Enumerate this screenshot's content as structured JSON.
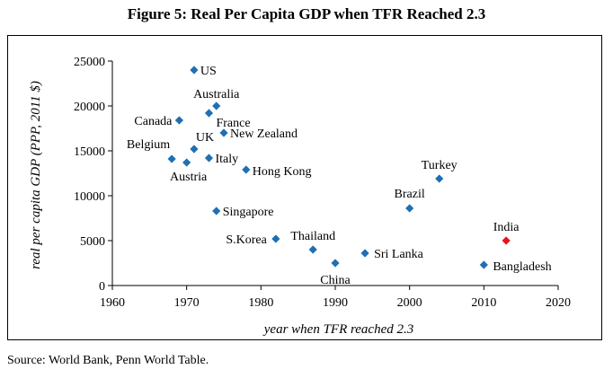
{
  "figure": {
    "title": "Figure 5: Real Per Capita GDP when TFR Reached 2.3",
    "source": "Source: World Bank, Penn World Table."
  },
  "chart_data": {
    "type": "scatter",
    "title": "Figure 5: Real Per Capita GDP when TFR Reached 2.3",
    "xlabel": "year when TFR reached 2.3",
    "ylabel": "real  per capita GDP (PPP, 2011 $)",
    "xlim": [
      1960,
      2020
    ],
    "ylim": [
      0,
      25000
    ],
    "xticks": [
      1960,
      1970,
      1980,
      1990,
      2000,
      2010,
      2020
    ],
    "yticks": [
      0,
      5000,
      10000,
      15000,
      20000,
      25000
    ],
    "grid": false,
    "legend": "none",
    "colors": {
      "default": "#1f6fb4",
      "highlight": "#e8141c"
    },
    "points": [
      {
        "label": "US",
        "x": 1971,
        "y": 24000,
        "highlight": false
      },
      {
        "label": "Australia",
        "x": 1974,
        "y": 20000,
        "highlight": false
      },
      {
        "label": "Canada",
        "x": 1969,
        "y": 18400,
        "highlight": false
      },
      {
        "label": "France",
        "x": 1973,
        "y": 19200,
        "highlight": false
      },
      {
        "label": "New Zealand",
        "x": 1975,
        "y": 17000,
        "highlight": false
      },
      {
        "label": "Belgium",
        "x": 1968,
        "y": 14100,
        "highlight": false
      },
      {
        "label": "UK",
        "x": 1971,
        "y": 15200,
        "highlight": false
      },
      {
        "label": "Austria",
        "x": 1970,
        "y": 13700,
        "highlight": false
      },
      {
        "label": "Italy",
        "x": 1973,
        "y": 14200,
        "highlight": false
      },
      {
        "label": "Hong Kong",
        "x": 1978,
        "y": 12900,
        "highlight": false
      },
      {
        "label": "Singapore",
        "x": 1974,
        "y": 8300,
        "highlight": false
      },
      {
        "label": "S.Korea",
        "x": 1982,
        "y": 5200,
        "highlight": false
      },
      {
        "label": "Thailand",
        "x": 1987,
        "y": 4000,
        "highlight": false
      },
      {
        "label": "China",
        "x": 1990,
        "y": 2500,
        "highlight": false
      },
      {
        "label": "Sri Lanka",
        "x": 1994,
        "y": 3600,
        "highlight": false
      },
      {
        "label": "Turkey",
        "x": 2004,
        "y": 11900,
        "highlight": false
      },
      {
        "label": "Brazil",
        "x": 2000,
        "y": 8600,
        "highlight": false
      },
      {
        "label": "Bangladesh",
        "x": 2010,
        "y": 2300,
        "highlight": false
      },
      {
        "label": "India",
        "x": 2013,
        "y": 5000,
        "highlight": true
      }
    ]
  }
}
